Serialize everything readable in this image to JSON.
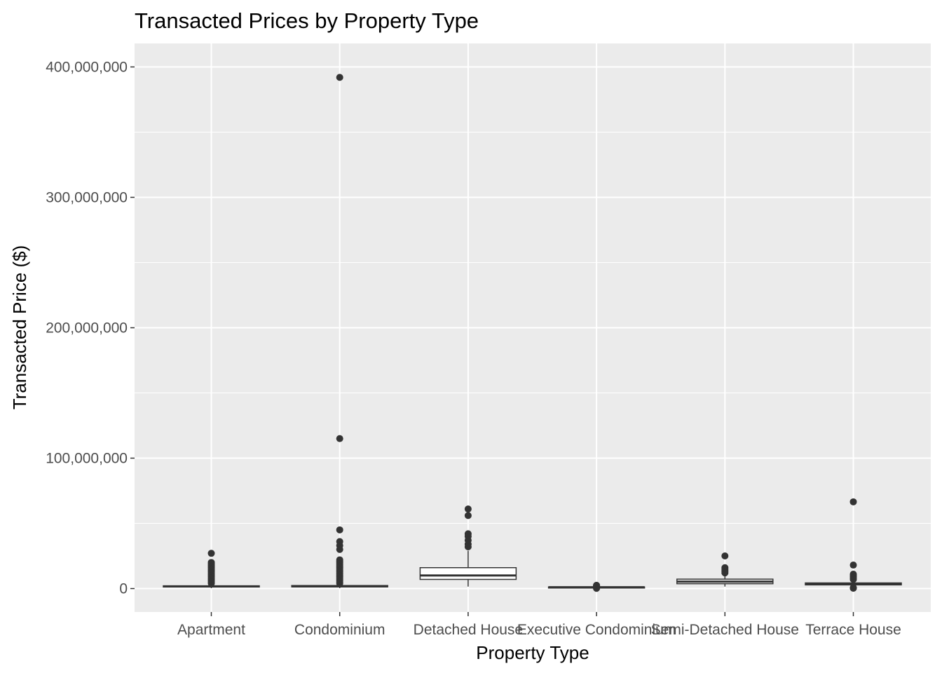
{
  "chart_data": {
    "type": "boxplot",
    "title": "Transacted Prices by Property Type",
    "xlabel": "Property Type",
    "ylabel": "Transacted Price ($)",
    "ylim": [
      -18000000,
      418000000
    ],
    "y_ticks": [
      0,
      100000000,
      200000000,
      300000000,
      400000000
    ],
    "y_tick_labels": [
      "0",
      "100,000,000",
      "200,000,000",
      "300,000,000",
      "400,000,000"
    ],
    "grid": true,
    "legend": "none",
    "categories": [
      "Apartment",
      "Condominium",
      "Detached House",
      "Executive Condominium",
      "Semi-Detached House",
      "Terrace House"
    ],
    "boxes": [
      {
        "category": "Apartment",
        "whisker_low": 300000,
        "q1": 1200000,
        "median": 1600000,
        "q3": 2100000,
        "whisker_high": 3500000,
        "outliers": [
          27000000,
          20000000,
          19000000,
          18000000,
          17000000,
          16000000,
          15000000,
          14000000,
          13000000,
          12000000,
          11000000,
          10000000,
          9000000,
          8000000,
          7000000,
          6000000,
          5000000,
          4000000
        ]
      },
      {
        "category": "Condominium",
        "whisker_low": 300000,
        "q1": 1300000,
        "median": 1700000,
        "q3": 2300000,
        "whisker_high": 3800000,
        "outliers": [
          392000000,
          115000000,
          45000000,
          36000000,
          33000000,
          30000000,
          22000000,
          21000000,
          20000000,
          19000000,
          18000000,
          17000000,
          16000000,
          15000000,
          14000000,
          13000000,
          12000000,
          11000000,
          10000000,
          9000000,
          8000000,
          7000000,
          6000000,
          5000000,
          4000000
        ]
      },
      {
        "category": "Detached House",
        "whisker_low": 1500000,
        "q1": 7000000,
        "median": 10000000,
        "q3": 16000000,
        "whisker_high": 29000000,
        "outliers": [
          61000000,
          56000000,
          42000000,
          40000000,
          37000000,
          34000000,
          32000000
        ]
      },
      {
        "category": "Executive Condominium",
        "whisker_low": 200000,
        "q1": 700000,
        "median": 1000000,
        "q3": 1200000,
        "whisker_high": 1800000,
        "outliers": [
          2500000,
          2200000,
          2000000,
          300000,
          150000
        ]
      },
      {
        "category": "Semi-Detached House",
        "whisker_low": 1500000,
        "q1": 3700000,
        "median": 5300000,
        "q3": 7200000,
        "whisker_high": 11000000,
        "outliers": [
          25000000,
          16000000,
          15000000,
          14000000,
          13000000,
          12000000
        ]
      },
      {
        "category": "Terrace House",
        "whisker_low": 1000000,
        "q1": 2800000,
        "median": 3500000,
        "q3": 4300000,
        "whisker_high": 6500000,
        "outliers": [
          66500000,
          18000000,
          11000000,
          10000000,
          9000000,
          8000000,
          7000000,
          700000,
          400000,
          200000
        ]
      }
    ]
  }
}
